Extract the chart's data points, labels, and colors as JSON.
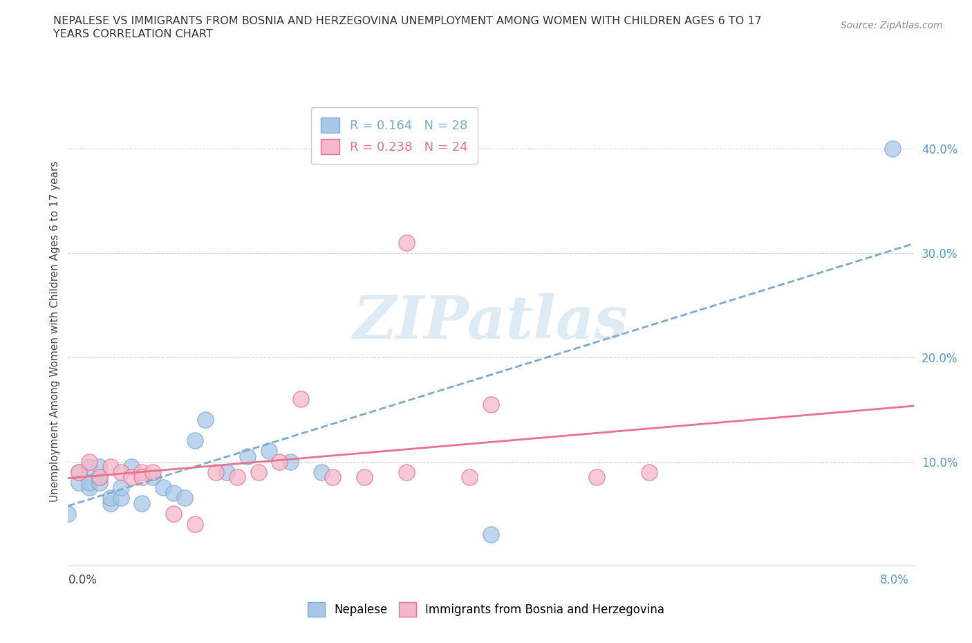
{
  "title_line1": "NEPALESE VS IMMIGRANTS FROM BOSNIA AND HERZEGOVINA UNEMPLOYMENT AMONG WOMEN WITH CHILDREN AGES 6 TO 17",
  "title_line2": "YEARS CORRELATION CHART",
  "source": "Source: ZipAtlas.com",
  "ylabel": "Unemployment Among Women with Children Ages 6 to 17 years",
  "ytick_labels": [
    "10.0%",
    "20.0%",
    "30.0%",
    "40.0%"
  ],
  "ytick_values": [
    0.1,
    0.2,
    0.3,
    0.4
  ],
  "xtick_labels": [
    "0.0%",
    "8.0%"
  ],
  "xlim": [
    0.0,
    0.08
  ],
  "ylim": [
    0.0,
    0.45
  ],
  "legend_r1": "R = 0.164   N = 28",
  "legend_r2": "R = 0.238   N = 24",
  "color_blue_fill": "#a8c8e8",
  "color_pink_fill": "#f5b8c8",
  "color_blue_edge": "#7aaad0",
  "color_pink_edge": "#e87090",
  "color_blue_line": "#7aaad0",
  "color_pink_line": "#e87090",
  "nepalese_x": [
    0.0,
    0.001,
    0.001,
    0.002,
    0.002,
    0.002,
    0.003,
    0.003,
    0.003,
    0.004,
    0.004,
    0.005,
    0.005,
    0.006,
    0.007,
    0.008,
    0.009,
    0.01,
    0.011,
    0.012,
    0.013,
    0.015,
    0.017,
    0.019,
    0.021,
    0.024,
    0.04,
    0.078
  ],
  "nepalese_y": [
    0.05,
    0.09,
    0.08,
    0.075,
    0.08,
    0.095,
    0.08,
    0.085,
    0.095,
    0.06,
    0.065,
    0.065,
    0.075,
    0.095,
    0.06,
    0.085,
    0.075,
    0.07,
    0.065,
    0.12,
    0.14,
    0.09,
    0.105,
    0.11,
    0.1,
    0.09,
    0.03,
    0.4
  ],
  "bosnia_x": [
    0.001,
    0.002,
    0.003,
    0.004,
    0.005,
    0.006,
    0.007,
    0.007,
    0.008,
    0.01,
    0.012,
    0.014,
    0.016,
    0.018,
    0.02,
    0.022,
    0.025,
    0.028,
    0.032,
    0.038,
    0.04,
    0.032,
    0.05,
    0.055
  ],
  "bosnia_y": [
    0.09,
    0.1,
    0.085,
    0.095,
    0.09,
    0.085,
    0.09,
    0.085,
    0.09,
    0.05,
    0.04,
    0.09,
    0.085,
    0.09,
    0.1,
    0.16,
    0.085,
    0.085,
    0.09,
    0.085,
    0.155,
    0.31,
    0.085,
    0.09
  ],
  "background_color": "#ffffff",
  "grid_color": "#d0d0d0",
  "watermark": "ZIPatlas",
  "bottom_legend_nepalese": "Nepalese",
  "bottom_legend_bosnia": "Immigrants from Bosnia and Herzegovina"
}
